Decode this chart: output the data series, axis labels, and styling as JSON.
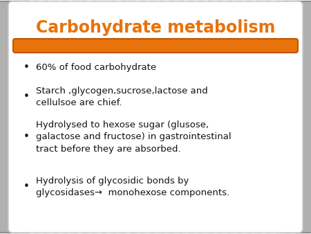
{
  "title": "Carbohydrate metabolism",
  "title_color": "#E8720C",
  "title_fontsize": 17,
  "bar_color": "#E8720C",
  "slide_bg": "#C8C8C8",
  "content_bg": "#FFFFFF",
  "bullet_points": [
    "60% of food carbohydrate",
    "Starch ,glycogen,sucrose,lactose and\ncellulsoe are chief.",
    "Hydrolysed to hexose sugar (glusose,\ngalactose and fructose) in gastrointestinal\ntract before they are absorbed.",
    "Hydrolysis of glycosidic bonds by\nglycosidases→  monohexose components."
  ],
  "text_color": "#111111",
  "text_fontsize": 9.5,
  "stripe_light": "#F4F4F4",
  "stripe_dark": "#E6E6E6",
  "panel_color": "#B0B0B0",
  "panel_edge": "#909090"
}
